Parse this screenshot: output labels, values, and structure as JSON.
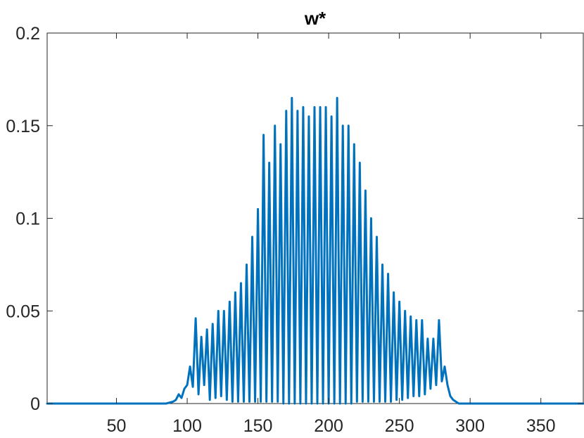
{
  "chart_data": {
    "type": "line",
    "title": "w*",
    "xlabel": "",
    "ylabel": "",
    "xlim": [
      1,
      380
    ],
    "ylim": [
      0,
      0.2
    ],
    "x_ticks": [
      50,
      100,
      150,
      200,
      250,
      300,
      350
    ],
    "x_tick_labels": [
      "50",
      "100",
      "150",
      "200",
      "250",
      "300",
      "350"
    ],
    "y_ticks": [
      0,
      0.05,
      0.1,
      0.15,
      0.2
    ],
    "y_tick_labels": [
      "0",
      "0.05",
      "0.1",
      "0.15",
      "0.2"
    ],
    "grid": false,
    "box": true,
    "line_color": "#0072BD",
    "axis_color": "#262626",
    "series": [
      {
        "x": [
          1,
          85,
          90,
          92,
          94,
          96,
          98,
          100,
          102,
          104,
          106,
          108,
          110,
          112,
          114,
          116,
          118,
          120,
          122,
          124,
          126,
          128,
          130,
          132,
          134,
          136,
          138,
          140,
          142,
          144,
          146,
          148,
          150,
          152,
          154,
          156,
          158,
          160,
          162,
          164,
          166,
          168,
          170,
          172,
          174,
          176,
          178,
          180,
          182,
          184,
          186,
          188,
          190,
          192,
          194,
          196,
          198,
          200,
          202,
          204,
          206,
          208,
          210,
          212,
          214,
          216,
          218,
          220,
          222,
          224,
          226,
          228,
          230,
          232,
          234,
          236,
          238,
          240,
          242,
          244,
          246,
          248,
          250,
          252,
          254,
          256,
          258,
          260,
          262,
          264,
          266,
          268,
          270,
          272,
          274,
          276,
          278,
          280,
          282,
          284,
          286,
          288,
          290,
          292,
          295,
          380
        ],
        "y": [
          0,
          0,
          0.001,
          0.002,
          0.005,
          0.003,
          0.008,
          0.01,
          0.02,
          0.009,
          0.046,
          0.005,
          0.036,
          0.01,
          0.04,
          0.002,
          0.043,
          0.003,
          0.05,
          0.004,
          0.05,
          0.002,
          0.055,
          0.001,
          0.06,
          0.001,
          0.065,
          0.001,
          0.075,
          0.001,
          0.09,
          0.001,
          0.105,
          0.001,
          0.145,
          0.001,
          0.13,
          0.001,
          0.15,
          0.001,
          0.14,
          0.0,
          0.158,
          0.0,
          0.165,
          0.0,
          0.158,
          0.0,
          0.16,
          0.0,
          0.155,
          0.0,
          0.16,
          0.0,
          0.16,
          0.0,
          0.16,
          0.0,
          0.155,
          0.0,
          0.165,
          0.0,
          0.15,
          0.0,
          0.15,
          0.0,
          0.14,
          0.001,
          0.13,
          0.001,
          0.115,
          0.001,
          0.1,
          0.001,
          0.09,
          0.001,
          0.075,
          0.001,
          0.07,
          0.001,
          0.06,
          0.002,
          0.055,
          0.002,
          0.05,
          0.003,
          0.047,
          0.004,
          0.045,
          0.004,
          0.045,
          0.005,
          0.035,
          0.008,
          0.035,
          0.01,
          0.045,
          0.012,
          0.02,
          0.01,
          0.004,
          0.002,
          0.001,
          0,
          0,
          0
        ]
      }
    ]
  }
}
